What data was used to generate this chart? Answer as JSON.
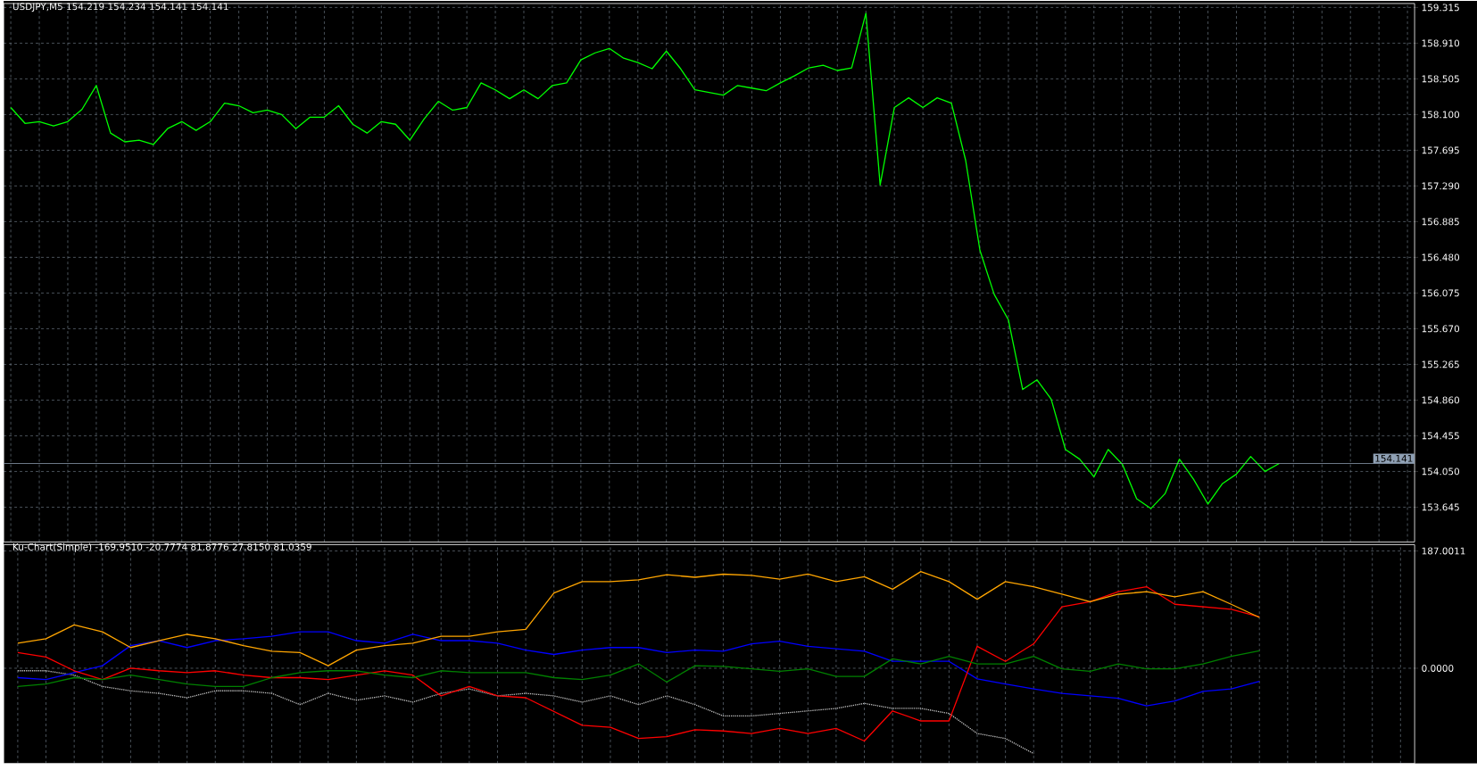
{
  "chart_data": [
    {
      "type": "line",
      "title": "USDJPY,M5  154.219 154.234 154.141 154.141",
      "categories": [
        null,
        null,
        null,
        null,
        null,
        null,
        null,
        null,
        null,
        null,
        null,
        null,
        null,
        null,
        null,
        null,
        null,
        null,
        null,
        null,
        null,
        null,
        null,
        null,
        null,
        null,
        null,
        null,
        null,
        null,
        null,
        null,
        null,
        null,
        null,
        null,
        null,
        null,
        null,
        null,
        null,
        null,
        null,
        null,
        null,
        null,
        null,
        null,
        null,
        null,
        null,
        null,
        null,
        null,
        null,
        null,
        null,
        null,
        null,
        null,
        null,
        null,
        null,
        null,
        null,
        null,
        null,
        null,
        null,
        null,
        null,
        null,
        null,
        null,
        null,
        null,
        null,
        null,
        null,
        null,
        null,
        null,
        null,
        null,
        null,
        null,
        null,
        null,
        null,
        null,
        null,
        null,
        null,
        null,
        null,
        null,
        null,
        null,
        null
      ],
      "series": [
        {
          "color": "#00ff00",
          "values": [
            158.18,
            158.0,
            158.02,
            157.97,
            158.02,
            158.16,
            158.43,
            157.89,
            157.79,
            157.81,
            157.76,
            157.94,
            158.02,
            157.92,
            158.02,
            158.23,
            158.2,
            158.12,
            158.15,
            158.1,
            157.94,
            158.07,
            158.07,
            158.2,
            157.99,
            157.89,
            158.02,
            157.99,
            157.81,
            158.05,
            158.25,
            158.15,
            158.18,
            158.46,
            158.38,
            158.28,
            158.38,
            158.28,
            158.43,
            158.46,
            158.72,
            158.8,
            158.85,
            158.74,
            158.69,
            158.62,
            158.82,
            158.62,
            158.38,
            158.35,
            158.32,
            158.43,
            158.4,
            158.37,
            158.46,
            158.54,
            158.63,
            158.66,
            158.6,
            158.63,
            159.25,
            157.3,
            158.18,
            158.29,
            158.18,
            158.29,
            158.23,
            157.58,
            156.56,
            156.06,
            155.77,
            154.98,
            155.09,
            154.87,
            154.3,
            154.19,
            153.99,
            154.3,
            154.13,
            153.74,
            153.63,
            153.8,
            154.19,
            153.96,
            153.68,
            153.91,
            154.02,
            154.22,
            154.05,
            154.14,
            null,
            null,
            null,
            null,
            null,
            null,
            null,
            null,
            null
          ]
        }
      ],
      "ylim": [
        153.25,
        159.36
      ],
      "yticks": [
        {
          "value": 153.645,
          "label": "153.645"
        },
        {
          "value": 154.05,
          "label": "154.050"
        },
        {
          "value": 154.455,
          "label": "154.455"
        },
        {
          "value": 154.86,
          "label": "154.860"
        },
        {
          "value": 155.265,
          "label": "155.265"
        },
        {
          "value": 155.67,
          "label": "155.670"
        },
        {
          "value": 156.075,
          "label": "156.075"
        },
        {
          "value": 156.48,
          "label": "156.480"
        },
        {
          "value": 156.885,
          "label": "156.885"
        },
        {
          "value": 157.29,
          "label": "157.290"
        },
        {
          "value": 157.695,
          "label": "157.695"
        },
        {
          "value": 158.1,
          "label": "158.100"
        },
        {
          "value": 158.505,
          "label": "158.505"
        },
        {
          "value": 158.91,
          "label": "158.910"
        },
        {
          "value": 159.315,
          "label": "159.315"
        }
      ],
      "ref_lines": [
        {
          "axis": "y",
          "value": 154.141,
          "label": "154.141",
          "color": "#8fa0b4"
        }
      ],
      "grid": true,
      "tick_labels": "y"
    },
    {
      "type": "line",
      "title": "Ku-Chart(Simple) -169.9510 -20.7774 81.8776 27.8150 81.0359",
      "categories": [
        null,
        null,
        null,
        null,
        null,
        null,
        null,
        null,
        null,
        null,
        null,
        null,
        null,
        null,
        null,
        null,
        null,
        null,
        null,
        null,
        null,
        null,
        null,
        null,
        null,
        null,
        null,
        null,
        null,
        null,
        null,
        null,
        null,
        null,
        null,
        null,
        null,
        null,
        null,
        null,
        null,
        null,
        null,
        null,
        null,
        null,
        null,
        null,
        null,
        null
      ],
      "series": [
        {
          "color": "#c0c0c0",
          "line_style": "dotted",
          "values": [
            -4,
            -4,
            -11,
            -29,
            -36,
            -40,
            -47,
            -36,
            -36,
            -40,
            -58,
            -40,
            -51,
            -44,
            -54,
            -40,
            -33,
            -44,
            -40,
            -44,
            -54,
            -44,
            -58,
            -44,
            -58,
            -76,
            -76,
            -72,
            -68,
            -64,
            -56,
            -64,
            -64,
            -72,
            -104,
            -112,
            -136,
            null,
            null,
            null,
            null,
            null,
            null,
            null,
            null,
            null,
            null,
            null,
            null,
            null
          ]
        },
        {
          "color": "#0000ff",
          "values": [
            -15,
            -18,
            -7,
            4,
            36,
            44,
            33,
            44,
            47,
            51,
            58,
            58,
            44,
            40,
            54,
            44,
            44,
            40,
            29,
            22,
            29,
            33,
            33,
            25,
            29,
            27,
            39,
            43,
            35,
            31,
            27,
            11,
            11,
            11,
            -17,
            -25,
            -33,
            -40,
            -44,
            -48,
            -60,
            -52,
            -37,
            -33,
            -21,
            null,
            null,
            null,
            null,
            null
          ]
        },
        {
          "color": "#ff0000",
          "values": [
            25,
            18,
            -4,
            -18,
            0,
            -4,
            -7,
            -4,
            -11,
            -15,
            -15,
            -18,
            -11,
            -4,
            -11,
            -44,
            -29,
            -44,
            -47,
            -69,
            -91,
            -94,
            -112,
            -109,
            -98,
            -100,
            -104,
            -96,
            -104,
            -96,
            -116,
            -68,
            -84,
            -84,
            35,
            11,
            39,
            98,
            106,
            122,
            130,
            102,
            98,
            94,
            82,
            null,
            null,
            null,
            null,
            null
          ]
        },
        {
          "color": "#008000",
          "values": [
            -29,
            -25,
            -15,
            -18,
            -11,
            -18,
            -25,
            -29,
            -29,
            -15,
            -7,
            -4,
            -4,
            -11,
            -15,
            -4,
            -7,
            -7,
            -7,
            -15,
            -18,
            -11,
            7,
            -22,
            4,
            3,
            -1,
            -5,
            -1,
            -13,
            -13,
            15,
            7,
            19,
            7,
            7,
            19,
            -1,
            -5,
            7,
            -1,
            -1,
            7,
            19,
            28,
            null,
            null,
            null,
            null,
            null
          ]
        },
        {
          "color": "#ffa500",
          "values": [
            40,
            47,
            69,
            58,
            33,
            44,
            54,
            47,
            36,
            27,
            25,
            4,
            29,
            36,
            40,
            51,
            51,
            58,
            62,
            120,
            138,
            138,
            141,
            149,
            145,
            150,
            148,
            142,
            150,
            138,
            146,
            126,
            154,
            138,
            110,
            138,
            130,
            118,
            106,
            118,
            122,
            114,
            122,
            102,
            81,
            null,
            null,
            null,
            null,
            null
          ]
        }
      ],
      "ylim": [
        -152,
        197
      ],
      "yticks": [
        {
          "value": 0,
          "label": "0.0000"
        },
        {
          "value": 187.0011,
          "label": "187.0011"
        }
      ],
      "grid": true,
      "tick_labels": "y"
    }
  ]
}
